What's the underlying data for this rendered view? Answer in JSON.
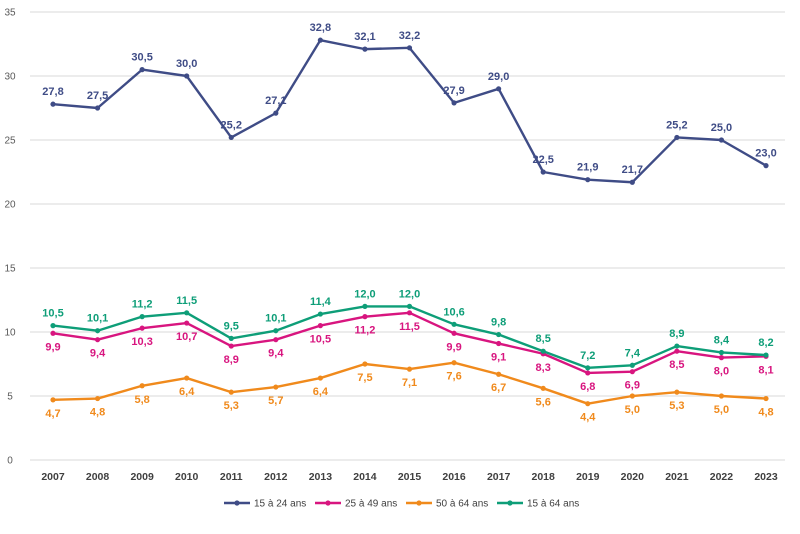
{
  "chart_data": {
    "type": "line",
    "categories": [
      "2007",
      "2008",
      "2009",
      "2010",
      "2011",
      "2012",
      "2013",
      "2014",
      "2015",
      "2016",
      "2017",
      "2018",
      "2019",
      "2020",
      "2021",
      "2022",
      "2023"
    ],
    "ylim": [
      0,
      35
    ],
    "yticks": [
      0,
      5,
      10,
      15,
      20,
      25,
      30,
      35
    ],
    "grid": true,
    "legend_position": "bottom",
    "series": [
      {
        "name": "15 à 24 ans",
        "color": "#3f4c86",
        "values": [
          27.8,
          27.5,
          30.5,
          30.0,
          25.2,
          27.1,
          32.8,
          32.1,
          32.2,
          27.9,
          29.0,
          22.5,
          21.9,
          21.7,
          25.2,
          25.0,
          23.0
        ],
        "labels": [
          "27,8",
          "27,5",
          "30,5",
          "30,0",
          "25,2",
          "27,1",
          "32,8",
          "32,1",
          "32,2",
          "27,9",
          "29,0",
          "22,5",
          "21,9",
          "21,7",
          "25,2",
          "25,0",
          "23,0"
        ]
      },
      {
        "name": "25 à 49 ans",
        "color": "#d8157f",
        "values": [
          9.9,
          9.4,
          10.3,
          10.7,
          8.9,
          9.4,
          10.5,
          11.2,
          11.5,
          9.9,
          9.1,
          8.3,
          6.8,
          6.9,
          8.5,
          8.0,
          8.1
        ],
        "labels": [
          "9,9",
          "9,4",
          "10,3",
          "10,7",
          "8,9",
          "9,4",
          "10,5",
          "11,2",
          "11,5",
          "9,9",
          "9,1",
          "8,3",
          "6,8",
          "6,9",
          "8,5",
          "8,0",
          "8,1"
        ]
      },
      {
        "name": "50 à 64 ans",
        "color": "#f08a1c",
        "values": [
          4.7,
          4.8,
          5.8,
          6.4,
          5.3,
          5.7,
          6.4,
          7.5,
          7.1,
          7.6,
          6.7,
          5.6,
          4.4,
          5.0,
          5.3,
          5.0,
          4.8
        ],
        "labels": [
          "4,7",
          "4,8",
          "5,8",
          "6,4",
          "5,3",
          "5,7",
          "6,4",
          "7,5",
          "7,1",
          "7,6",
          "6,7",
          "5,6",
          "4,4",
          "5,0",
          "5,3",
          "5,0",
          "4,8"
        ]
      },
      {
        "name": "15 à 64 ans",
        "color": "#0e9e78",
        "values": [
          10.5,
          10.1,
          11.2,
          11.5,
          9.5,
          10.1,
          11.4,
          12.0,
          12.0,
          10.6,
          9.8,
          8.5,
          7.2,
          7.4,
          8.9,
          8.4,
          8.2
        ],
        "labels": [
          "10,5",
          "10,1",
          "11,2",
          "11,5",
          "9,5",
          "10,1",
          "11,4",
          "12,0",
          "12,0",
          "10,6",
          "9,8",
          "8,5",
          "7,2",
          "7,4",
          "8,9",
          "8,4",
          "8,2"
        ]
      }
    ],
    "ytick_labels": [
      "0",
      "5",
      "10",
      "15",
      "20",
      "25",
      "30",
      "35"
    ]
  }
}
